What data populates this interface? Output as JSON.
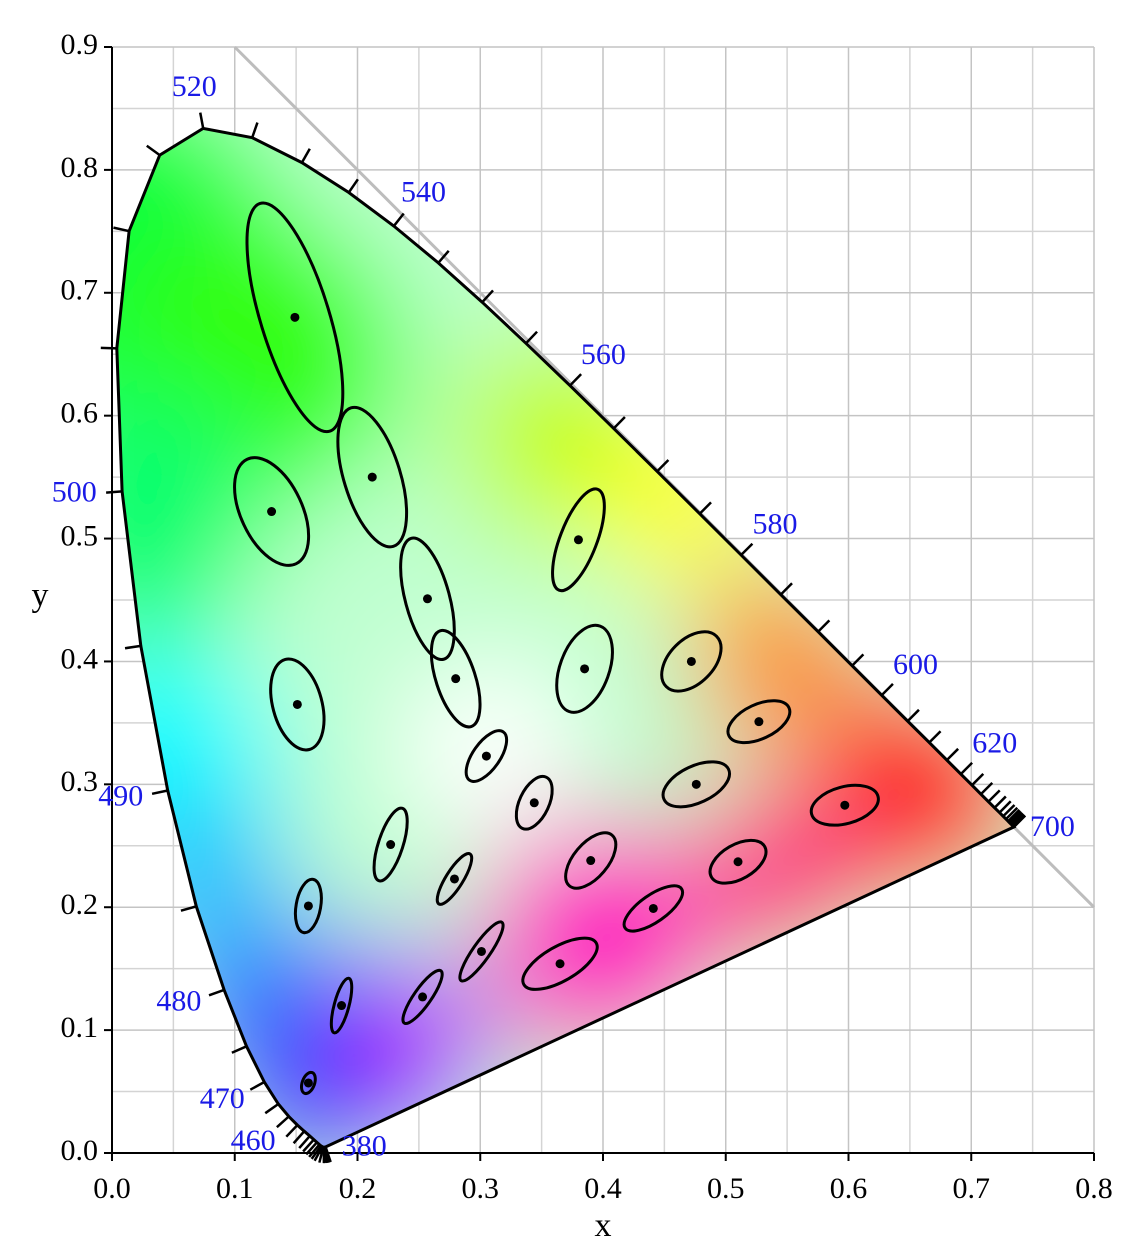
{
  "chart_data": {
    "type": "scatter",
    "xlabel": "x",
    "ylabel": "y",
    "xlim": [
      0,
      0.8
    ],
    "ylim": [
      0,
      0.9
    ],
    "xticks": [
      {
        "value": 0,
        "label": "0.0"
      },
      0.1,
      0.2,
      0.3,
      0.4,
      0.5,
      0.6,
      0.7,
      0.8
    ],
    "yticks": [
      {
        "value": 0,
        "label": "0.0"
      },
      0.1,
      0.2,
      0.3,
      0.4,
      0.5,
      0.6,
      0.7,
      0.8,
      0.9
    ],
    "xminorticks": [
      0.05,
      0.15,
      0.25,
      0.35,
      0.45,
      0.55,
      0.65,
      0.75
    ],
    "yminorticks": [
      0.05,
      0.15,
      0.25,
      0.35,
      0.45,
      0.55,
      0.65,
      0.75,
      0.85
    ],
    "grid": true,
    "reference_line": {
      "x": [
        0.1,
        0.8
      ],
      "y": [
        0.9,
        0.2
      ],
      "color": "#bdbdbd"
    },
    "locus": {
      "wavelength": [
        380,
        385,
        390,
        395,
        400,
        405,
        410,
        415,
        420,
        425,
        430,
        435,
        440,
        445,
        450,
        455,
        460,
        465,
        470,
        475,
        480,
        485,
        490,
        495,
        500,
        505,
        510,
        515,
        520,
        525,
        530,
        535,
        540,
        545,
        550,
        555,
        560,
        565,
        570,
        575,
        580,
        585,
        590,
        595,
        600,
        605,
        610,
        615,
        620,
        625,
        630,
        635,
        640,
        645,
        650,
        655,
        660,
        665,
        670,
        675,
        680,
        685,
        690,
        695,
        700
      ],
      "x": [
        0.1741,
        0.174,
        0.1738,
        0.1736,
        0.1733,
        0.173,
        0.1726,
        0.1721,
        0.1714,
        0.1703,
        0.1689,
        0.1669,
        0.1644,
        0.1611,
        0.1566,
        0.151,
        0.144,
        0.1355,
        0.1241,
        0.1096,
        0.0913,
        0.0687,
        0.0454,
        0.0235,
        0.0082,
        0.0039,
        0.0139,
        0.0389,
        0.0743,
        0.1142,
        0.1547,
        0.1929,
        0.2296,
        0.2658,
        0.3016,
        0.3373,
        0.3731,
        0.4087,
        0.4441,
        0.4788,
        0.5125,
        0.5448,
        0.5752,
        0.6029,
        0.627,
        0.6482,
        0.6658,
        0.6801,
        0.6915,
        0.7006,
        0.7079,
        0.714,
        0.719,
        0.723,
        0.726,
        0.7283,
        0.73,
        0.7311,
        0.732,
        0.7327,
        0.7334,
        0.734,
        0.7344,
        0.7346,
        0.7347
      ],
      "y": [
        0.005,
        0.005,
        0.0049,
        0.0049,
        0.0048,
        0.0048,
        0.0048,
        0.0048,
        0.0051,
        0.0058,
        0.0069,
        0.0086,
        0.0109,
        0.0138,
        0.0177,
        0.0227,
        0.0297,
        0.0399,
        0.0578,
        0.0868,
        0.1327,
        0.2007,
        0.295,
        0.4127,
        0.5384,
        0.6548,
        0.7502,
        0.812,
        0.8338,
        0.8262,
        0.8059,
        0.7816,
        0.7543,
        0.7243,
        0.6923,
        0.6589,
        0.6245,
        0.5896,
        0.5547,
        0.5202,
        0.4866,
        0.4544,
        0.4242,
        0.3965,
        0.3725,
        0.3514,
        0.334,
        0.3197,
        0.3083,
        0.2993,
        0.292,
        0.2859,
        0.2809,
        0.277,
        0.274,
        0.2717,
        0.27,
        0.2689,
        0.268,
        0.2673,
        0.2666,
        0.266,
        0.2656,
        0.2654,
        0.2653
      ]
    },
    "wavelength_labels": [
      380,
      460,
      470,
      480,
      490,
      500,
      520,
      540,
      560,
      580,
      600,
      620,
      700
    ],
    "ellipses": {
      "color": "#000000",
      "x": [
        0.149,
        0.212,
        0.13,
        0.257,
        0.28,
        0.151,
        0.38,
        0.385,
        0.305,
        0.472,
        0.527,
        0.476,
        0.597,
        0.344,
        0.227,
        0.279,
        0.39,
        0.51,
        0.16,
        0.441,
        0.301,
        0.365,
        0.187,
        0.253,
        0.16
      ],
      "y": [
        0.68,
        0.55,
        0.522,
        0.451,
        0.386,
        0.365,
        0.499,
        0.394,
        0.323,
        0.4,
        0.351,
        0.3,
        0.283,
        0.285,
        0.251,
        0.223,
        0.238,
        0.237,
        0.201,
        0.199,
        0.164,
        0.154,
        0.12,
        0.127,
        0.057
      ],
      "a": [
        0.097,
        0.059,
        0.047,
        0.051,
        0.041,
        0.038,
        0.044,
        0.037,
        0.024,
        0.029,
        0.027,
        0.029,
        0.028,
        0.023,
        0.031,
        0.024,
        0.027,
        0.025,
        0.022,
        0.028,
        0.029,
        0.034,
        0.023,
        0.026,
        0.009
      ],
      "b": [
        0.028,
        0.023,
        0.025,
        0.018,
        0.016,
        0.02,
        0.015,
        0.02,
        0.011,
        0.018,
        0.014,
        0.015,
        0.015,
        0.012,
        0.01,
        0.007,
        0.014,
        0.014,
        0.01,
        0.011,
        0.007,
        0.014,
        0.006,
        0.007,
        0.005
      ],
      "angle": [
        107,
        107,
        115,
        105,
        108,
        105,
        69,
        70,
        55,
        45,
        25,
        25,
        15,
        65,
        72,
        58,
        50,
        30,
        80,
        35,
        55,
        30,
        75,
        55,
        70
      ]
    }
  }
}
